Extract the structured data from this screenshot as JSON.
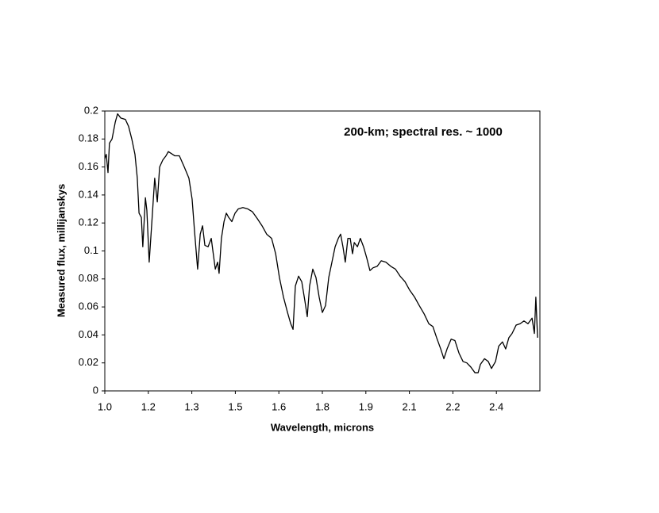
{
  "chart_data": {
    "type": "line",
    "annotation": "200-km; spectral res. ~ 1000",
    "x_label": "Wavelength, microns",
    "y_label": "Measured flux, millijanskys",
    "xlim": [
      1.0,
      2.5
    ],
    "ylim": [
      0,
      0.2
    ],
    "xticks": [
      {
        "value": 1.0,
        "label": "1.0"
      },
      {
        "value": 1.15,
        "label": "1.2"
      },
      1.3,
      {
        "value": 1.45,
        "label": "1.5"
      },
      1.6,
      {
        "value": 1.75,
        "label": "1.8"
      },
      1.9,
      {
        "value": 2.05,
        "label": "2.1"
      },
      2.2,
      {
        "value": 2.35,
        "label": "2.4"
      }
    ],
    "yticks": [
      0,
      0.02,
      0.04,
      0.06,
      0.08,
      0.1,
      0.12,
      0.14,
      0.16,
      0.18,
      0.2
    ],
    "grid": false,
    "series": [
      {
        "color": "#000000",
        "x": [
          1.0,
          1.005,
          1.011,
          1.016,
          1.025,
          1.036,
          1.044,
          1.055,
          1.071,
          1.082,
          1.093,
          1.104,
          1.112,
          1.118,
          1.126,
          1.131,
          1.14,
          1.145,
          1.153,
          1.162,
          1.172,
          1.181,
          1.189,
          1.2,
          1.211,
          1.219,
          1.241,
          1.257,
          1.274,
          1.29,
          1.301,
          1.309,
          1.32,
          1.329,
          1.337,
          1.345,
          1.356,
          1.367,
          1.372,
          1.381,
          1.389,
          1.394,
          1.402,
          1.411,
          1.419,
          1.427,
          1.438,
          1.449,
          1.46,
          1.476,
          1.493,
          1.509,
          1.526,
          1.542,
          1.558,
          1.575,
          1.589,
          1.602,
          1.616,
          1.63,
          1.641,
          1.649,
          1.657,
          1.668,
          1.679,
          1.69,
          1.698,
          1.706,
          1.717,
          1.728,
          1.739,
          1.75,
          1.761,
          1.772,
          1.783,
          1.794,
          1.805,
          1.813,
          1.821,
          1.829,
          1.838,
          1.846,
          1.854,
          1.86,
          1.871,
          1.881,
          1.892,
          1.903,
          1.914,
          1.925,
          1.939,
          1.953,
          1.969,
          1.986,
          2.002,
          2.018,
          2.035,
          2.051,
          2.068,
          2.084,
          2.101,
          2.117,
          2.131,
          2.144,
          2.158,
          2.169,
          2.18,
          2.194,
          2.207,
          2.221,
          2.235,
          2.248,
          2.262,
          2.276,
          2.287,
          2.295,
          2.309,
          2.322,
          2.333,
          2.347,
          2.358,
          2.371,
          2.382,
          2.393,
          2.404,
          2.418,
          2.432,
          2.445,
          2.459,
          2.473,
          2.481,
          2.486,
          2.492
        ],
        "values": [
          0.166,
          0.169,
          0.156,
          0.177,
          0.18,
          0.192,
          0.198,
          0.195,
          0.194,
          0.189,
          0.18,
          0.169,
          0.152,
          0.127,
          0.124,
          0.103,
          0.138,
          0.129,
          0.092,
          0.12,
          0.152,
          0.135,
          0.16,
          0.165,
          0.168,
          0.171,
          0.168,
          0.168,
          0.16,
          0.152,
          0.137,
          0.115,
          0.087,
          0.112,
          0.118,
          0.104,
          0.103,
          0.109,
          0.101,
          0.087,
          0.092,
          0.084,
          0.109,
          0.121,
          0.127,
          0.124,
          0.121,
          0.127,
          0.13,
          0.131,
          0.13,
          0.128,
          0.123,
          0.118,
          0.112,
          0.109,
          0.098,
          0.081,
          0.067,
          0.056,
          0.048,
          0.044,
          0.075,
          0.082,
          0.078,
          0.064,
          0.053,
          0.075,
          0.087,
          0.081,
          0.067,
          0.056,
          0.061,
          0.081,
          0.092,
          0.103,
          0.109,
          0.112,
          0.103,
          0.092,
          0.109,
          0.109,
          0.098,
          0.106,
          0.103,
          0.109,
          0.103,
          0.095,
          0.086,
          0.088,
          0.089,
          0.093,
          0.092,
          0.089,
          0.087,
          0.082,
          0.078,
          0.072,
          0.067,
          0.061,
          0.055,
          0.048,
          0.046,
          0.038,
          0.03,
          0.023,
          0.03,
          0.037,
          0.036,
          0.027,
          0.021,
          0.02,
          0.017,
          0.013,
          0.013,
          0.019,
          0.023,
          0.021,
          0.016,
          0.021,
          0.032,
          0.035,
          0.03,
          0.038,
          0.041,
          0.047,
          0.048,
          0.05,
          0.048,
          0.052,
          0.041,
          0.067,
          0.038
        ]
      }
    ]
  }
}
